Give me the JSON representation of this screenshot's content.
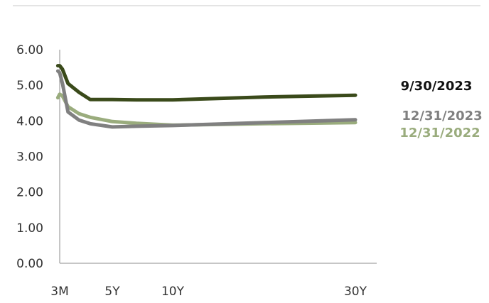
{
  "chart_data": {
    "type": "line",
    "x_tick_labels": [
      "3M",
      "5Y",
      "10Y",
      "30Y"
    ],
    "x_tick_positions": [
      0.25,
      5,
      10,
      30
    ],
    "y_tick_labels": [
      "0.00",
      "1.00",
      "2.00",
      "3.00",
      "4.00",
      "5.00",
      "6.00"
    ],
    "ylim": [
      0,
      6
    ],
    "xlim": [
      0,
      30
    ],
    "grid": false,
    "series": [
      {
        "name": "9/30/2023",
        "color": "#3a4a1a",
        "x": [
          0.0833,
          0.25,
          0.5,
          1,
          2,
          3,
          5,
          7,
          10,
          20,
          30
        ],
        "values": [
          5.55,
          5.55,
          5.45,
          5.05,
          4.8,
          4.6,
          4.6,
          4.59,
          4.59,
          4.67,
          4.72
        ]
      },
      {
        "name": "12/31/2023",
        "color": "#808080",
        "x": [
          0.0833,
          0.25,
          0.5,
          1,
          2,
          3,
          5,
          7,
          10,
          20,
          30
        ],
        "values": [
          5.4,
          5.35,
          5.05,
          4.25,
          4.02,
          3.92,
          3.83,
          3.85,
          3.87,
          3.95,
          4.03
        ]
      },
      {
        "name": "12/31/2022",
        "color": "#9aac7d",
        "x": [
          0.0833,
          0.25,
          0.5,
          1,
          2,
          3,
          5,
          7,
          10,
          20,
          30
        ],
        "values": [
          4.65,
          4.75,
          4.7,
          4.4,
          4.2,
          4.1,
          3.98,
          3.93,
          3.88,
          3.92,
          3.95
        ]
      }
    ]
  }
}
